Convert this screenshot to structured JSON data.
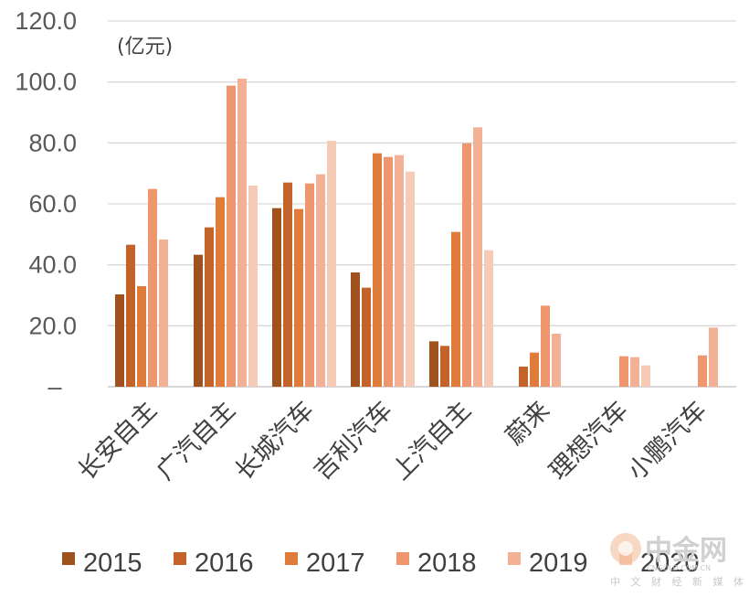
{
  "chart_data": {
    "type": "bar",
    "unit_label": "(亿元)",
    "categories": [
      "长安自主",
      "广汽自主",
      "长城汽车",
      "吉利汽车",
      "上汽自主",
      "蔚来",
      "理想汽车",
      "小鹏汽车"
    ],
    "series": [
      {
        "name": "2015",
        "color": "#A0521E",
        "values": [
          30.3,
          43.3,
          58.6,
          37.5,
          14.9,
          null,
          null,
          null
        ]
      },
      {
        "name": "2016",
        "color": "#C3632A",
        "values": [
          46.6,
          52.3,
          67.0,
          32.5,
          13.4,
          6.6,
          null,
          null
        ]
      },
      {
        "name": "2017",
        "color": "#E07C3A",
        "values": [
          33.0,
          62.2,
          58.3,
          76.6,
          50.8,
          11.2,
          null,
          null
        ]
      },
      {
        "name": "2018",
        "color": "#EE966E",
        "values": [
          64.9,
          98.8,
          66.7,
          75.4,
          79.9,
          26.6,
          10.0,
          10.3
        ]
      },
      {
        "name": "2019",
        "color": "#F2B195",
        "values": [
          48.3,
          101.1,
          69.7,
          76.0,
          85.1,
          17.4,
          9.7,
          19.4
        ]
      },
      {
        "name": "2020",
        "color": "#F5CBB8",
        "values": [
          null,
          66.0,
          80.7,
          70.6,
          44.8,
          null,
          7.0,
          null
        ]
      }
    ],
    "y_ticks": [
      "–",
      "20.0",
      "40.0",
      "60.0",
      "80.0",
      "100.0",
      "120.0"
    ],
    "ylim": [
      0,
      120
    ],
    "grid": true,
    "legend_position": "bottom"
  },
  "watermark": {
    "text": "中金网",
    "subtext": "中 文 财 经 新 媒 体",
    "url": "CNGOLD.COM.CN"
  }
}
